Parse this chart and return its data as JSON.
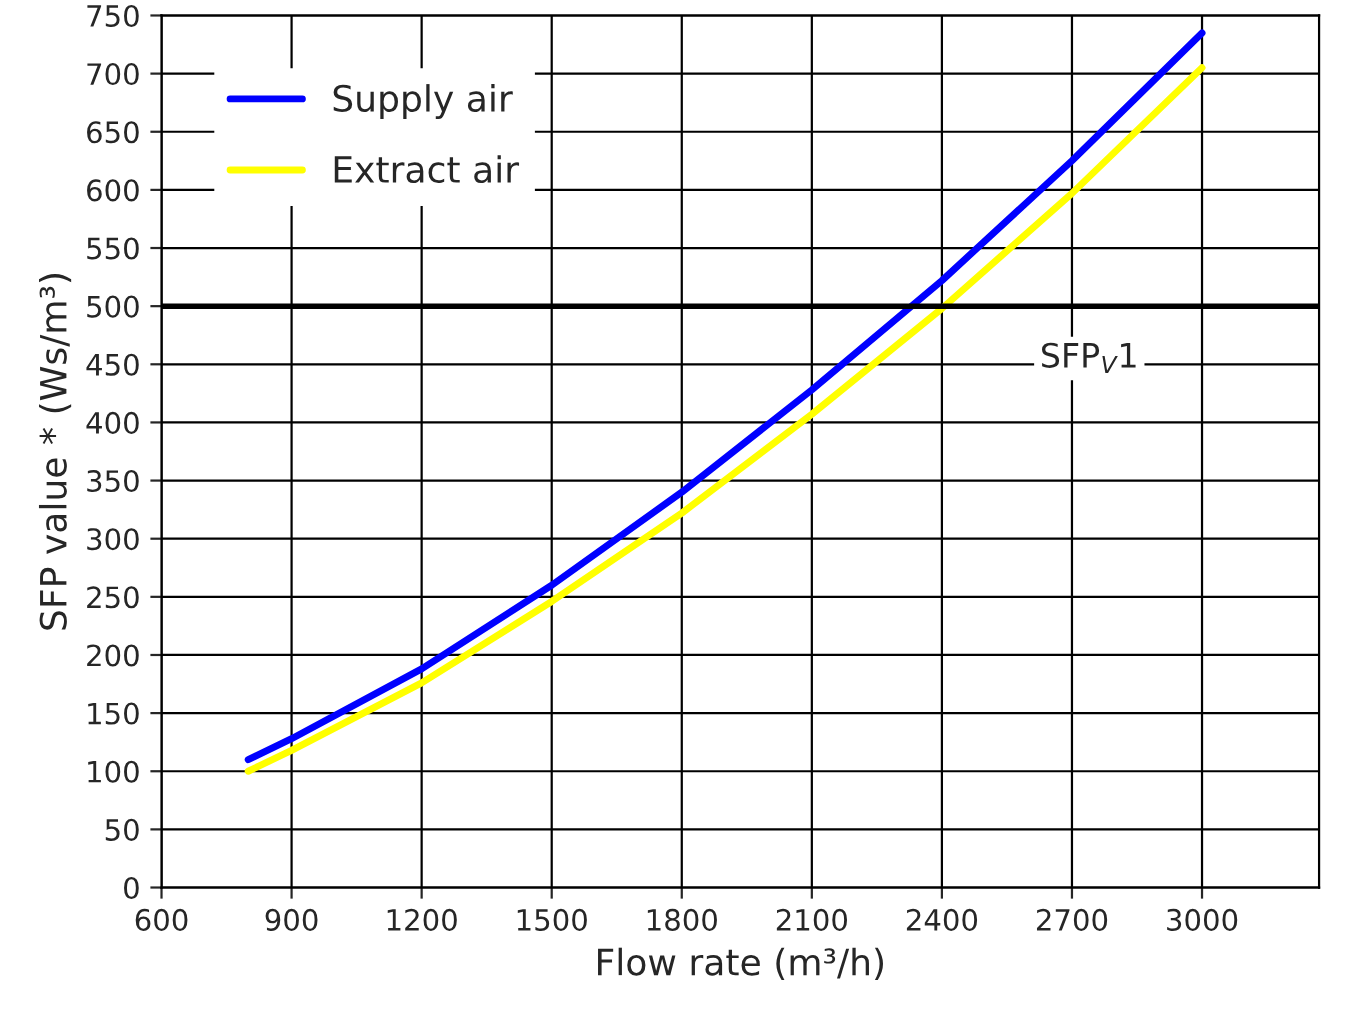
{
  "chart_data": {
    "type": "line",
    "xlabel": "Flow rate (m³/h)",
    "ylabel": "SFP value * (Ws/m³)",
    "x": [
      800,
      900,
      1200,
      1500,
      1800,
      2100,
      2400,
      2700,
      3000
    ],
    "series": [
      {
        "name": "Supply air",
        "color": "#0000ff",
        "values": [
          110,
          128,
          188,
          260,
          340,
          428,
          522,
          625,
          735
        ]
      },
      {
        "name": "Extract air",
        "color": "#ffff00",
        "values": [
          100,
          118,
          176,
          246,
          322,
          407,
          498,
          597,
          705
        ]
      }
    ],
    "xlim": [
      600,
      3270
    ],
    "xticks": [
      600,
      900,
      1200,
      1500,
      1800,
      2100,
      2400,
      2700,
      3000
    ],
    "ylim": [
      0,
      750
    ],
    "yticks": [
      0,
      50,
      100,
      150,
      200,
      250,
      300,
      350,
      400,
      450,
      500,
      550,
      600,
      650,
      700,
      750
    ],
    "ref_lines": [
      {
        "axis": "y",
        "value": 500,
        "label": "SFP$_{V}$1",
        "color": "#000000",
        "line_style": "solid"
      }
    ],
    "grid": true,
    "legend": "top left",
    "line_style": "solid",
    "marker": "none"
  }
}
